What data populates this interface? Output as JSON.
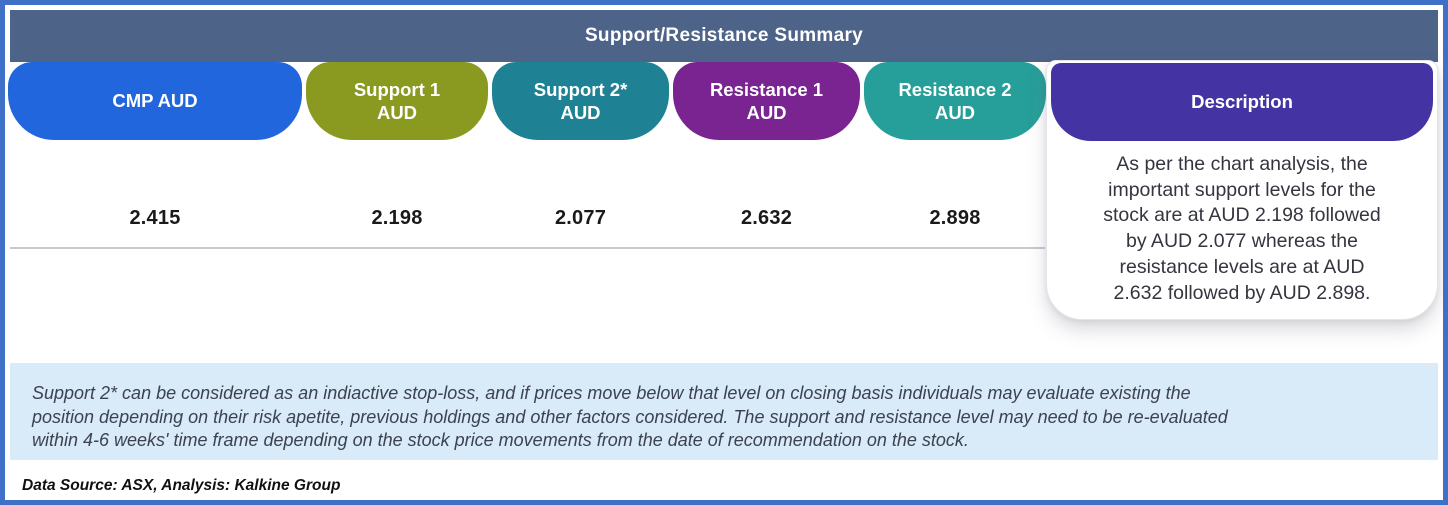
{
  "table": {
    "title": "Support/Resistance Summary",
    "columns": [
      {
        "label": [
          "CMP AUD"
        ],
        "value": "2.415",
        "color": "#2166dc"
      },
      {
        "label": [
          "Support 1",
          "AUD"
        ],
        "value": "2.198",
        "color": "#8a9a20"
      },
      {
        "label": [
          "Support 2*",
          "AUD"
        ],
        "value": "2.077",
        "color": "#1f8294"
      },
      {
        "label": [
          "Resistance 1",
          "AUD"
        ],
        "value": "2.632",
        "color": "#7a2492"
      },
      {
        "label": [
          "Resistance 2",
          "AUD"
        ],
        "value": "2.898",
        "color": "#269e99"
      }
    ]
  },
  "description": {
    "header": "Description",
    "header_color": "#4434a3",
    "lines": [
      "As per the chart analysis, the",
      "important support levels for the",
      "stock are at AUD 2.198 followed",
      "by AUD 2.077 whereas the",
      "resistance levels are at AUD",
      "2.632 followed by AUD 2.898."
    ]
  },
  "note": {
    "lines": [
      "Support 2* can be considered as an indiactive stop-loss, and if prices move below that level on closing basis individuals may evaluate existing the",
      "position depending on their risk apetite, previous holdings and other factors considered. The support and resistance level may need to be re-evaluated",
      "within 4-6 weeks' time frame depending on the stock price movements from  the date of recommendation on the stock."
    ],
    "background": "#d9eaf8"
  },
  "source": "Data Source: ASX, Analysis: Kalkine Group",
  "colors": {
    "outer_border": "#3f70c8",
    "header_bar": "#4e6388",
    "value_text": "#1a1a1a",
    "divider": "#c9c9cc"
  },
  "chart_data": {
    "type": "table",
    "title": "Support/Resistance Summary",
    "columns": [
      "CMP AUD",
      "Support 1 AUD",
      "Support 2* AUD",
      "Resistance 1 AUD",
      "Resistance 2 AUD",
      "Description"
    ],
    "rows": [
      [
        "2.415",
        "2.198",
        "2.077",
        "2.632",
        "2.898",
        "As per the chart analysis, the important support levels for the stock are at AUD 2.198 followed by AUD 2.077 whereas the resistance levels are at AUD 2.632 followed by AUD 2.898."
      ]
    ]
  }
}
